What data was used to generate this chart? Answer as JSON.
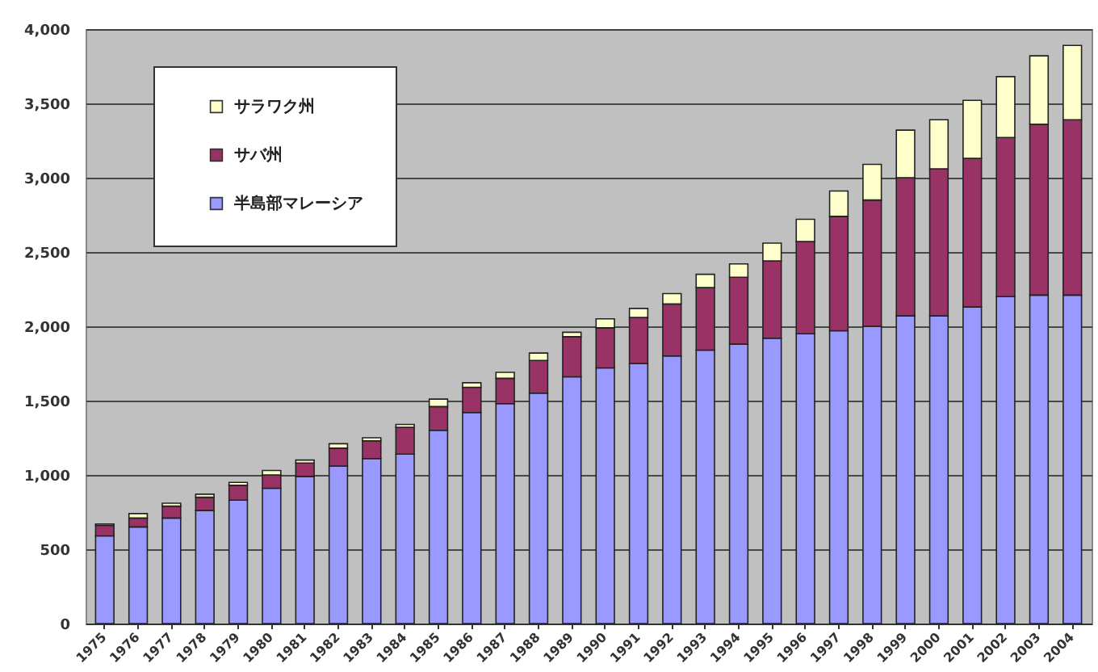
{
  "chart_data": {
    "type": "bar",
    "stacked": true,
    "categories": [
      "1975",
      "1976",
      "1977",
      "1978",
      "1979",
      "1980",
      "1981",
      "1982",
      "1983",
      "1984",
      "1985",
      "1986",
      "1987",
      "1988",
      "1989",
      "1990",
      "1991",
      "1992",
      "1993",
      "1994",
      "1995",
      "1996",
      "1997",
      "1998",
      "1999",
      "2000",
      "2001",
      "2002",
      "2003",
      "2004"
    ],
    "series": [
      {
        "name": "半島部マレーシア",
        "color": "#9999ff",
        "values": [
          590,
          650,
          710,
          760,
          830,
          910,
          990,
          1060,
          1110,
          1140,
          1300,
          1420,
          1480,
          1550,
          1660,
          1720,
          1750,
          1800,
          1840,
          1880,
          1920,
          1950,
          1970,
          2000,
          2070,
          2070,
          2130,
          2200,
          2210,
          2210
        ]
      },
      {
        "name": "サバ州",
        "color": "#993366",
        "values": [
          70,
          60,
          80,
          90,
          100,
          90,
          90,
          120,
          120,
          180,
          160,
          170,
          170,
          220,
          270,
          270,
          310,
          350,
          420,
          450,
          520,
          620,
          770,
          850,
          930,
          990,
          1000,
          1070,
          1150,
          1180
        ]
      },
      {
        "name": "サラワク州",
        "color": "#ffffcc",
        "values": [
          10,
          30,
          20,
          20,
          20,
          30,
          20,
          30,
          20,
          20,
          50,
          30,
          40,
          50,
          30,
          60,
          60,
          70,
          90,
          90,
          120,
          150,
          170,
          240,
          320,
          330,
          390,
          410,
          460,
          500
        ]
      }
    ],
    "ylim": [
      0,
      4000
    ],
    "yticks": [
      0,
      500,
      {
        "value": 1000,
        "label": "1,000"
      },
      {
        "value": 1500,
        "label": "1,500"
      },
      {
        "value": 2000,
        "label": "2,000"
      },
      {
        "value": 2500,
        "label": "2,500"
      },
      {
        "value": 3000,
        "label": "3,000"
      },
      {
        "value": 3500,
        "label": "3,500"
      },
      {
        "value": 4000,
        "label": "4,000"
      }
    ],
    "grid": "y",
    "legend": "top left"
  }
}
